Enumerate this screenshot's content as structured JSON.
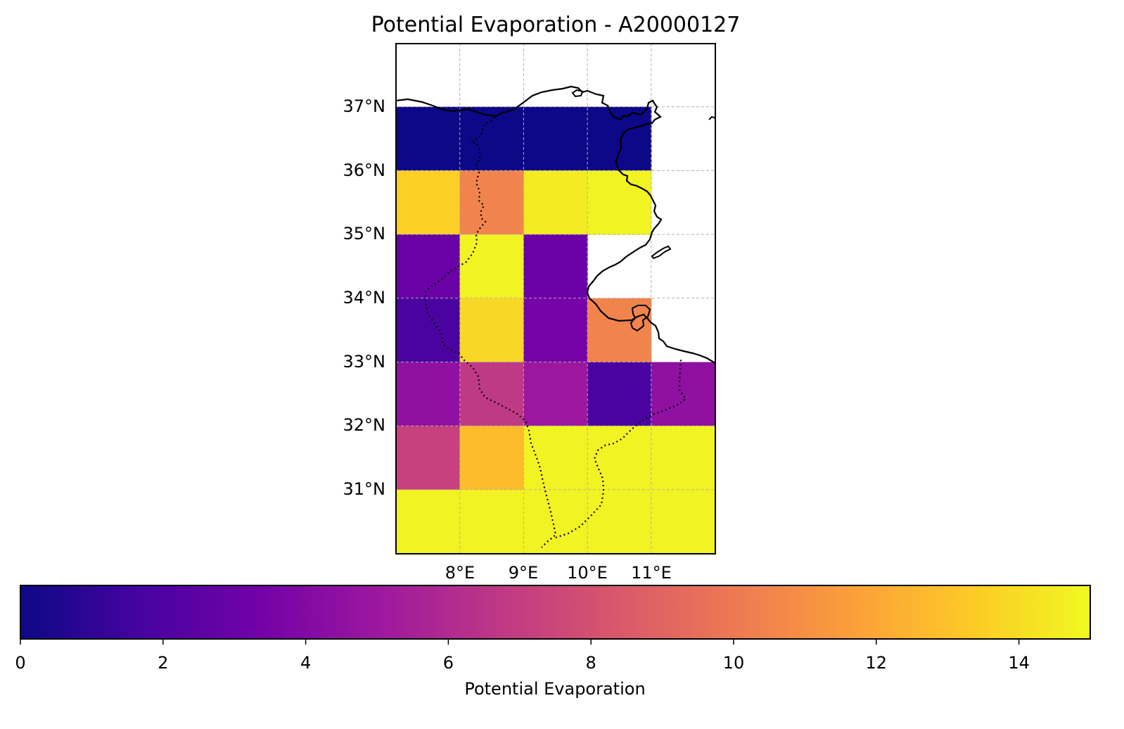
{
  "title": "Potential Evaporation - A20000127",
  "colorbar": {
    "label": "Potential Evaporation",
    "ticks": [
      "0",
      "2",
      "4",
      "6",
      "8",
      "10",
      "12",
      "14"
    ],
    "vmin": 0,
    "vmax": 15,
    "colormap": "plasma",
    "stops": [
      "#0d0887",
      "#46039f",
      "#7201a8",
      "#9c179e",
      "#bd3786",
      "#d8576b",
      "#ed7953",
      "#fb9f3a",
      "#fdca26",
      "#f0f921"
    ]
  },
  "axes": {
    "lat_ticks": [
      "31°N",
      "32°N",
      "33°N",
      "34°N",
      "35°N",
      "36°N",
      "37°N"
    ],
    "lon_ticks": [
      "8°E",
      "9°E",
      "10°E",
      "11°E"
    ],
    "lon_range": [
      7,
      12
    ],
    "lat_range": [
      30,
      38
    ],
    "grid": true
  },
  "chart_data": {
    "type": "heatmap",
    "x": [
      7.5,
      8.5,
      9.5,
      10.5,
      11.5
    ],
    "y": [
      36.5,
      35.5,
      34.5,
      33.5,
      32.5,
      31.5,
      30.5
    ],
    "values": [
      [
        0.0,
        0.0,
        0.0,
        0.0,
        null
      ],
      [
        13.5,
        10.5,
        14.5,
        14.8,
        null
      ],
      [
        3.0,
        14.8,
        3.0,
        null,
        null
      ],
      [
        1.8,
        13.8,
        3.5,
        10.5,
        null
      ],
      [
        4.5,
        6.8,
        5.0,
        1.8,
        4.5
      ],
      [
        7.2,
        12.8,
        14.8,
        14.8,
        14.8
      ],
      [
        14.8,
        14.8,
        14.8,
        14.8,
        14.8
      ]
    ],
    "xlabel": "",
    "ylabel": "",
    "grid": true
  }
}
